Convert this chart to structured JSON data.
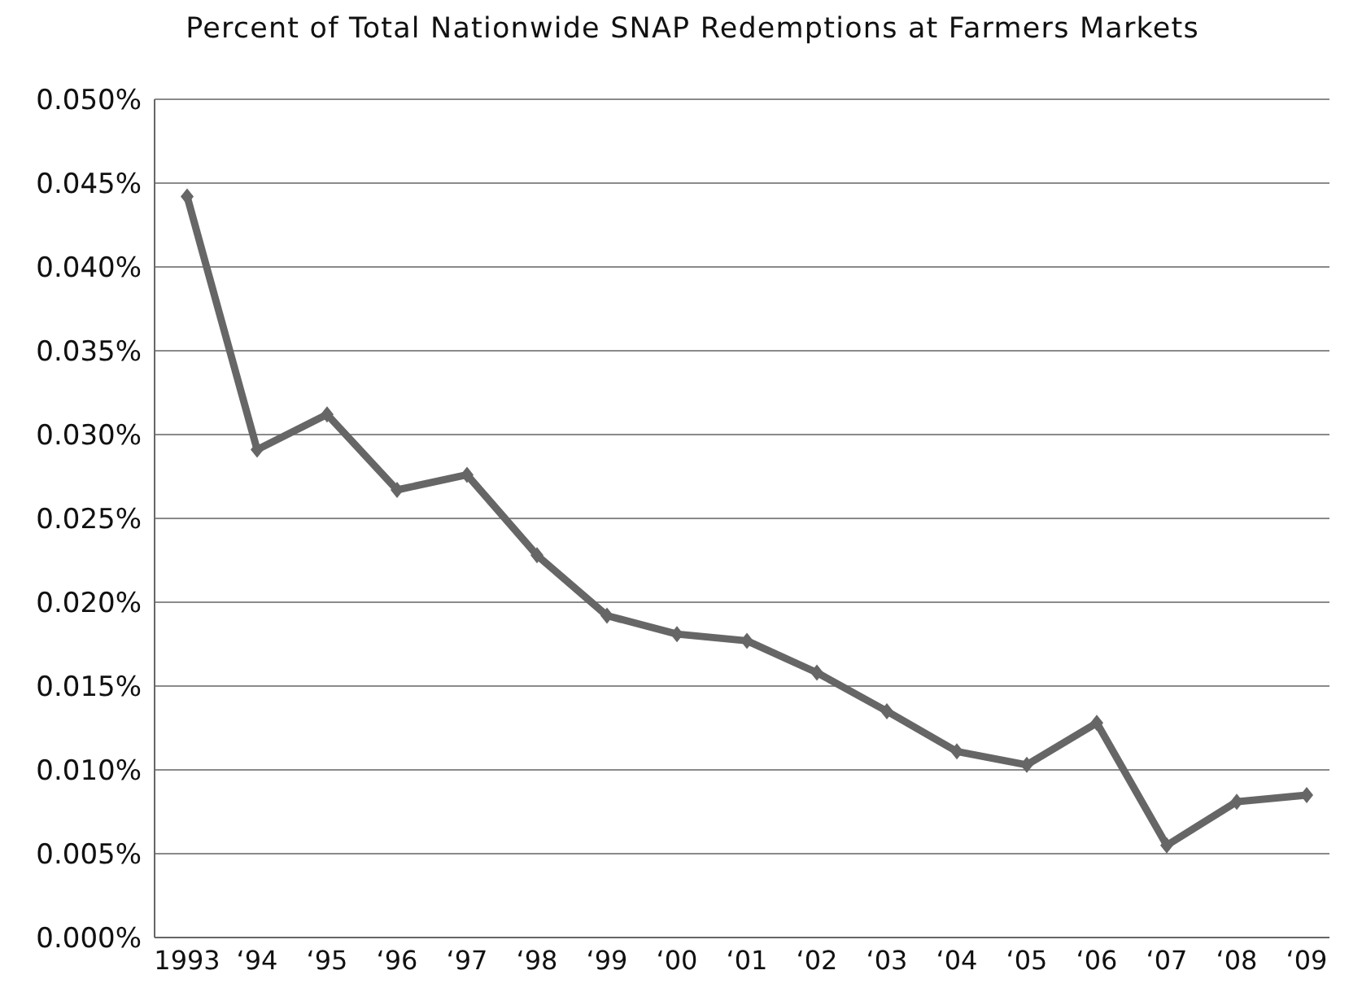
{
  "chart_data": {
    "type": "line",
    "title": "Percent of Total Nationwide SNAP Redemptions at Farmers Markets",
    "categories": [
      "1993",
      "‘94",
      "‘95",
      "‘96",
      "‘97",
      "‘98",
      "‘99",
      "‘00",
      "‘01",
      "‘02",
      "‘03",
      "‘04",
      "‘05",
      "‘06",
      "‘07",
      "‘08",
      "‘09"
    ],
    "series": [
      {
        "color": "#666666",
        "values": [
          0.0442,
          0.0291,
          0.0312,
          0.0267,
          0.0276,
          0.0228,
          0.0192,
          0.0181,
          0.0177,
          0.0158,
          0.0135,
          0.0111,
          0.0103,
          0.0128,
          0.0055,
          0.0081,
          0.0085
        ]
      }
    ],
    "ylim": [
      0,
      0.05
    ],
    "yticks": [
      {
        "value": 0,
        "label": "0.000%"
      },
      {
        "value": 0.005,
        "label": "0.005%"
      },
      {
        "value": 0.01,
        "label": "0.010%"
      },
      {
        "value": 0.015,
        "label": "0.015%"
      },
      {
        "value": 0.02,
        "label": "0.020%"
      },
      {
        "value": 0.025,
        "label": "0.025%"
      },
      {
        "value": 0.03,
        "label": "0.030%"
      },
      {
        "value": 0.035,
        "label": "0.035%"
      },
      {
        "value": 0.04,
        "label": "0.040%"
      },
      {
        "value": 0.045,
        "label": "0.045%"
      },
      {
        "value": 0.05,
        "label": "0.050%"
      }
    ],
    "grid": "y",
    "marker": "diamond",
    "line_style": "solid",
    "legend": false
  }
}
